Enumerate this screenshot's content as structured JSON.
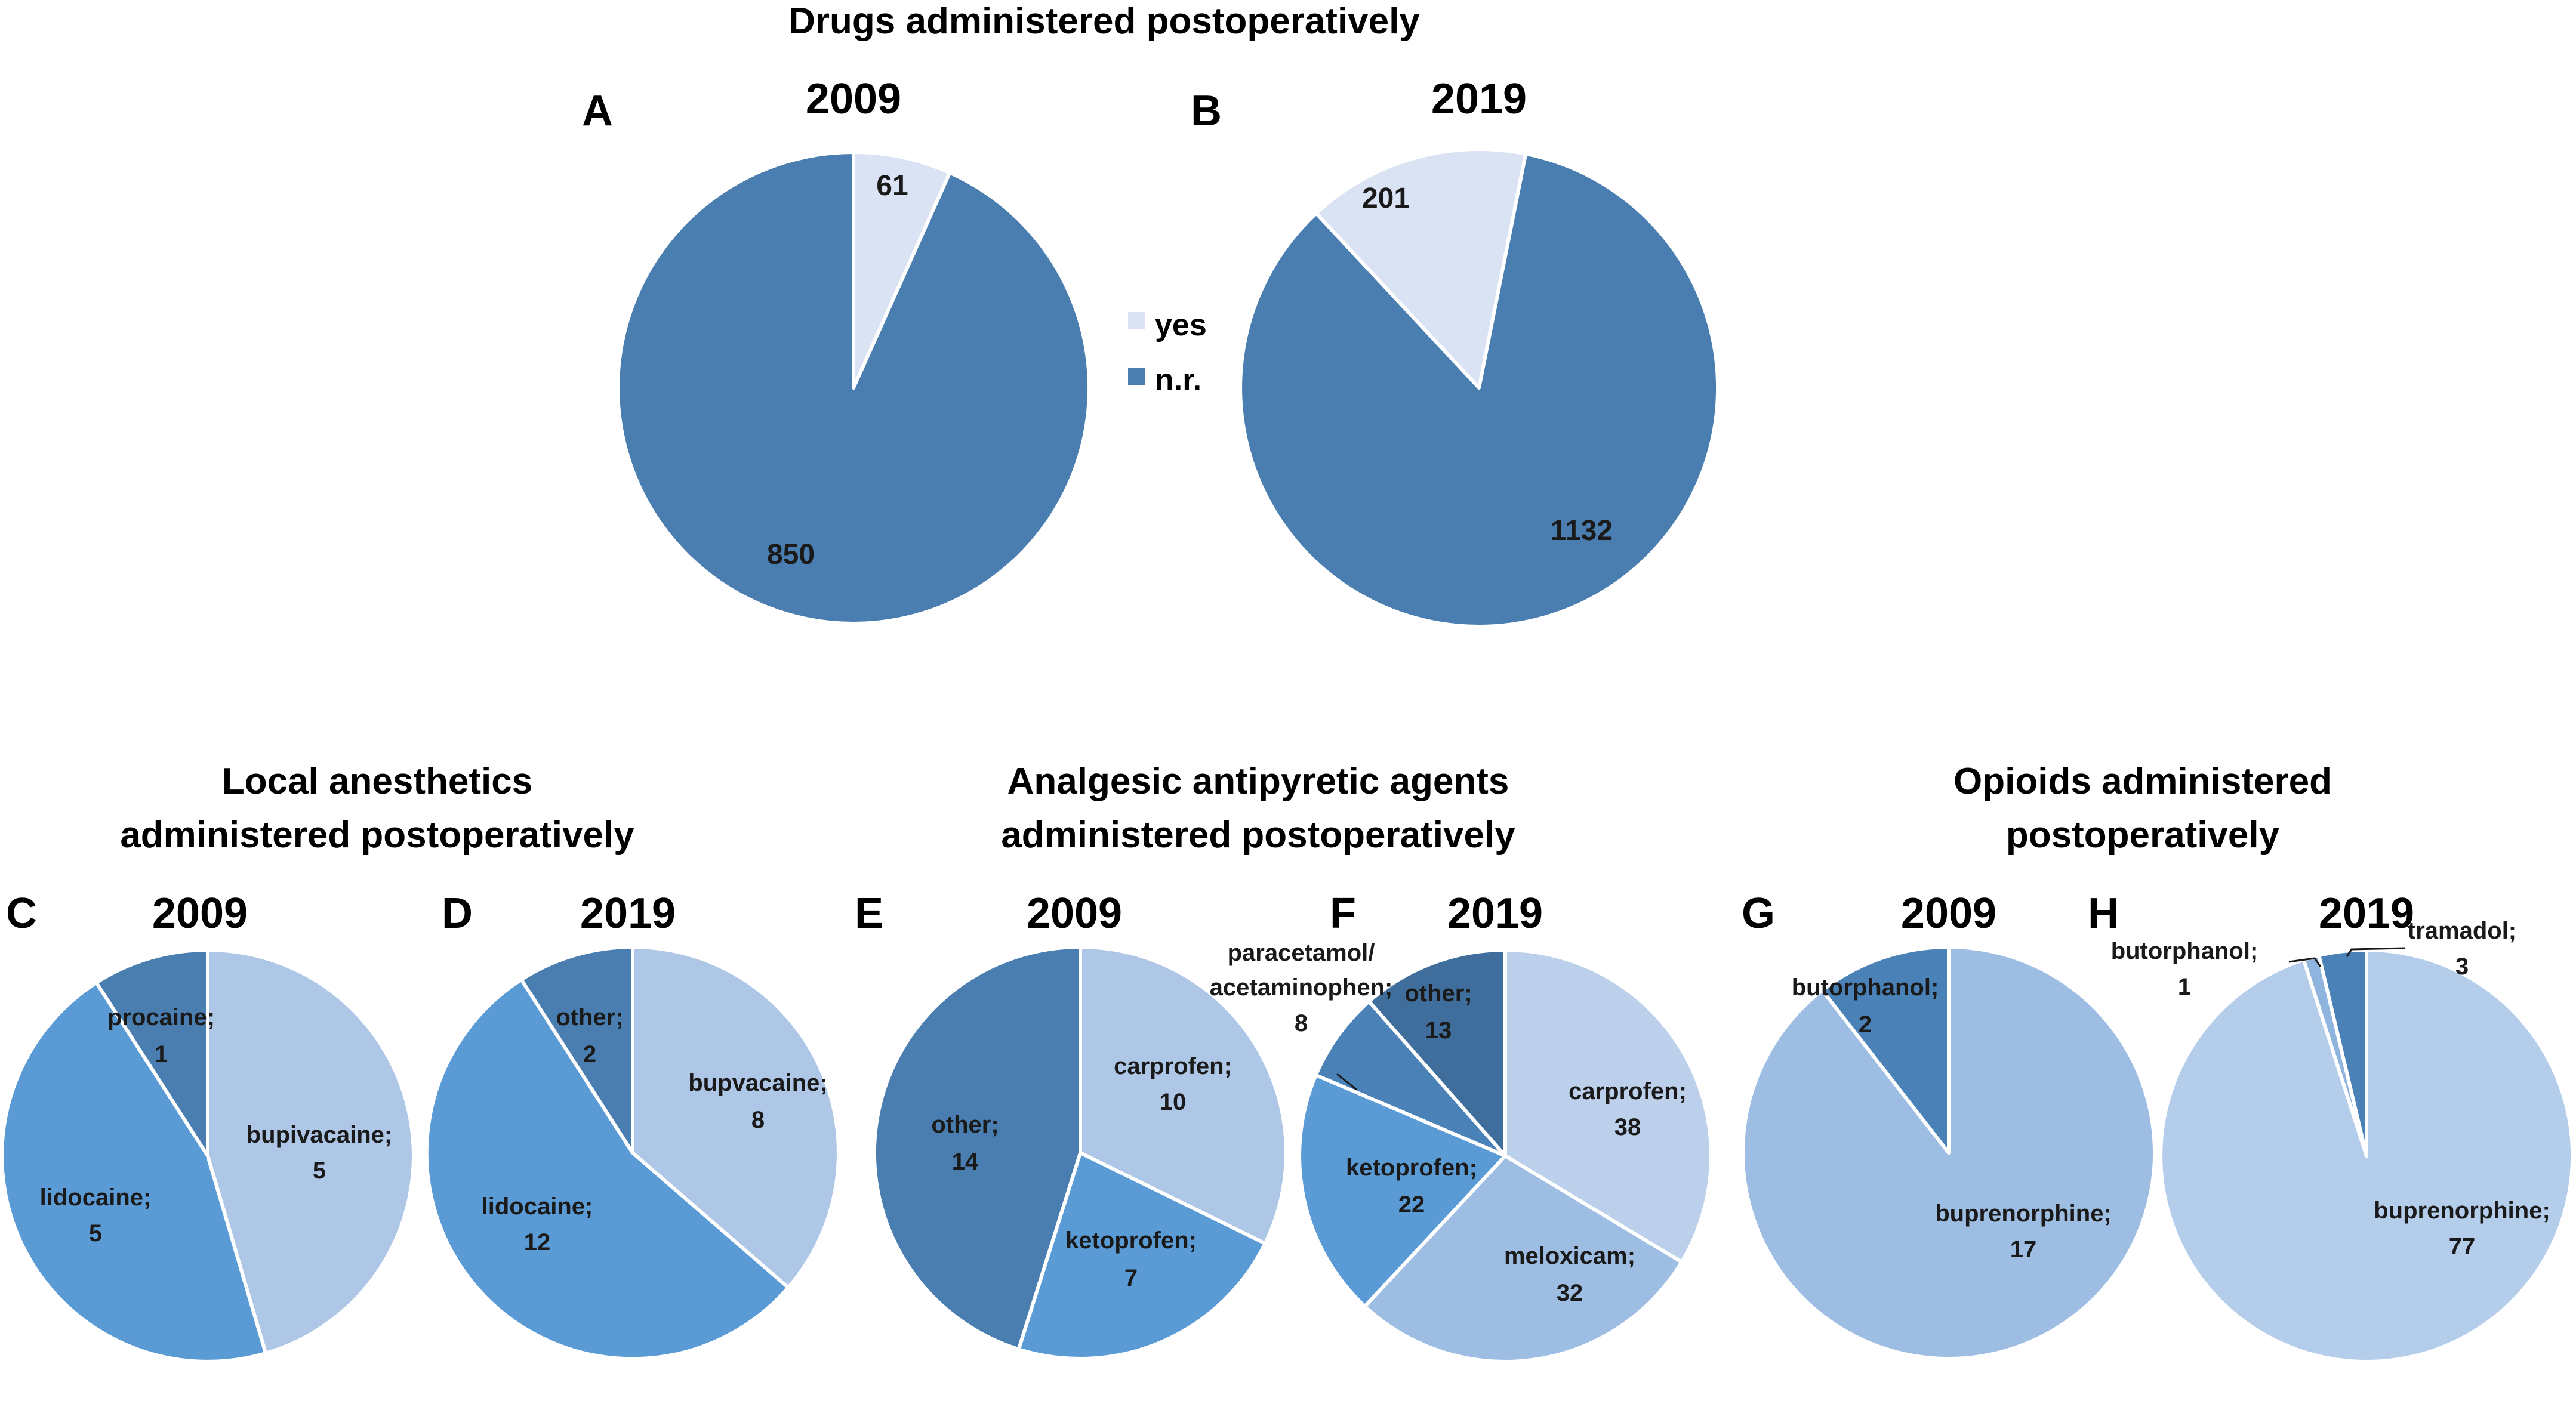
{
  "main_title": "Drugs administered postoperatively",
  "group_titles": {
    "local": [
      "Local anesthetics",
      "administered postoperatively"
    ],
    "analgesic": [
      "Analgesic antipyretic agents",
      "administered postoperatively"
    ],
    "opioids": [
      "Opioids administered",
      "postoperatively"
    ]
  },
  "legend": [
    {
      "label": "yes",
      "color": "#dae3f3"
    },
    {
      "label": "n.r.",
      "color": "#4a7eb0"
    }
  ],
  "chart_data": [
    {
      "panel": "A",
      "title": "2009",
      "type": "pie",
      "slices": [
        {
          "label": "yes",
          "value": 61,
          "color": "#dae3f3",
          "text": "61"
        },
        {
          "label": "n.r.",
          "value": 850,
          "color": "#4a7eb0",
          "text": "850"
        }
      ]
    },
    {
      "panel": "B",
      "title": "2019",
      "type": "pie",
      "slices": [
        {
          "label": "yes",
          "value": 201,
          "color": "#dae3f3",
          "text": "201"
        },
        {
          "label": "n.r.",
          "value": 1132,
          "color": "#4a7eb0",
          "text": "1132"
        }
      ]
    },
    {
      "panel": "C",
      "title": "2009",
      "type": "pie",
      "slices": [
        {
          "label": "bupivacaine",
          "value": 5,
          "color": "#aec7e7",
          "text": [
            "bupivacaine;",
            "5"
          ]
        },
        {
          "label": "lidocaine",
          "value": 5,
          "color": "#5b9bd5",
          "text": [
            "lidocaine;",
            "5"
          ]
        },
        {
          "label": "procaine",
          "value": 1,
          "color": "#4a7eb0",
          "text": [
            "procaine;",
            "1"
          ]
        }
      ]
    },
    {
      "panel": "D",
      "title": "2019",
      "type": "pie",
      "slices": [
        {
          "label": "bupvacaine",
          "value": 8,
          "color": "#aec7e7",
          "text": [
            "bupvacaine;",
            "8"
          ]
        },
        {
          "label": "lidocaine",
          "value": 12,
          "color": "#5b9bd5",
          "text": [
            "lidocaine;",
            "12"
          ]
        },
        {
          "label": "other",
          "value": 2,
          "color": "#4a7eb0",
          "text": [
            "other;",
            "2"
          ]
        }
      ]
    },
    {
      "panel": "E",
      "title": "2009",
      "type": "pie",
      "slices": [
        {
          "label": "carprofen",
          "value": 10,
          "color": "#aec7e7",
          "text": [
            "carprofen;",
            "10"
          ]
        },
        {
          "label": "ketoprofen",
          "value": 7,
          "color": "#5b9bd5",
          "text": [
            "ketoprofen;",
            "7"
          ]
        },
        {
          "label": "other",
          "value": 14,
          "color": "#4a7eb0",
          "text": [
            "other;",
            "14"
          ]
        }
      ]
    },
    {
      "panel": "F",
      "title": "2019",
      "type": "pie",
      "slices": [
        {
          "label": "carprofen",
          "value": 38,
          "color": "#bcd0ec",
          "text": [
            "carprofen;",
            "38"
          ]
        },
        {
          "label": "meloxicam",
          "value": 32,
          "color": "#9dbde3",
          "text": [
            "meloxicam;",
            "32"
          ]
        },
        {
          "label": "ketoprofen",
          "value": 22,
          "color": "#5b9bd5",
          "text": [
            "ketoprofen;",
            "22"
          ]
        },
        {
          "label": "paracetamol/acetaminophen",
          "value": 8,
          "color": "#4a82b8",
          "text": [
            "paracetamol/",
            "acetaminophen;",
            "8"
          ]
        },
        {
          "label": "other",
          "value": 13,
          "color": "#3f6e9c",
          "text": [
            "other;",
            "13"
          ]
        }
      ]
    },
    {
      "panel": "G",
      "title": "2009",
      "type": "pie",
      "slices": [
        {
          "label": "buprenorphine",
          "value": 17,
          "color": "#9dbde3",
          "text": [
            "buprenorphine;",
            "17"
          ]
        },
        {
          "label": "butorphanol",
          "value": 2,
          "color": "#4a82b8",
          "text": [
            "butorphanol;",
            "2"
          ]
        }
      ]
    },
    {
      "panel": "H",
      "title": "2019",
      "type": "pie",
      "slices": [
        {
          "label": "buprenorphine",
          "value": 77,
          "color": "#b4cdea",
          "text": [
            "buprenorphine;",
            "77"
          ]
        },
        {
          "label": "butorphanol",
          "value": 1,
          "color": "#8fb4dd",
          "text": [
            "butorphanol;",
            "1"
          ]
        },
        {
          "label": "tramadol",
          "value": 3,
          "color": "#4a82b8",
          "text": [
            "tramadol;",
            "3"
          ]
        }
      ]
    }
  ]
}
